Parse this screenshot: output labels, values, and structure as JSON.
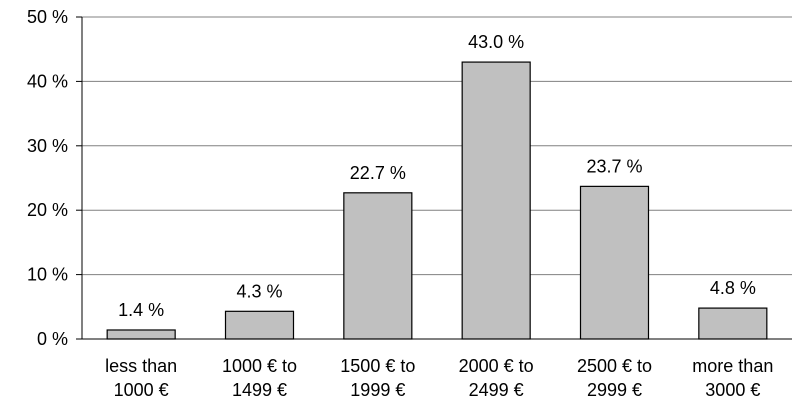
{
  "chart_data": {
    "type": "bar",
    "categories": [
      [
        "less than",
        "1000 €"
      ],
      [
        "1000 € to",
        "1499 €"
      ],
      [
        "1500 € to",
        "1999 €"
      ],
      [
        "2000 € to",
        "2499 €"
      ],
      [
        "2500 € to",
        "2999 €"
      ],
      [
        "more than",
        "3000 €"
      ]
    ],
    "values": [
      1.4,
      4.3,
      22.7,
      43.0,
      23.7,
      4.8
    ],
    "data_labels": [
      "1.4 %",
      "4.3 %",
      "22.7 %",
      "43.0 %",
      "23.7 %",
      "4.8 %"
    ],
    "y_ticks": [
      0,
      10,
      20,
      30,
      40,
      50
    ],
    "y_tick_labels": [
      "0 %",
      "10 %",
      "20 %",
      "30 %",
      "40 %",
      "50 %"
    ],
    "ylim": [
      0,
      50
    ],
    "grid": true,
    "legend": "none",
    "colors": {
      "bar_fill": "#c0c0c0",
      "bar_stroke": "#000000",
      "grid": "#808080"
    }
  }
}
